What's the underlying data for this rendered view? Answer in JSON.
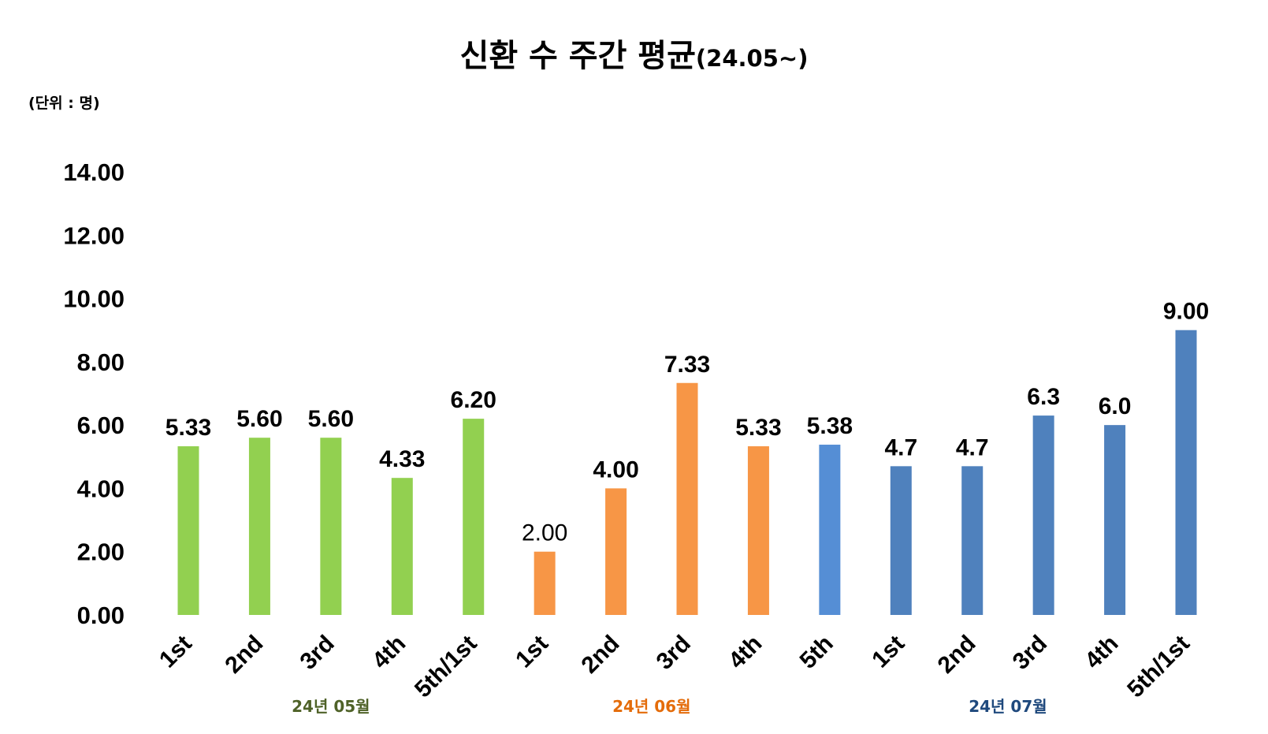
{
  "chart_data": {
    "type": "bar",
    "title": "신환 수 주간 평균",
    "title_suffix": "(24.05~)",
    "unit_label": "(단위 : 명)",
    "ylim": [
      0,
      14
    ],
    "yticks": [
      "0.00",
      "2.00",
      "4.00",
      "6.00",
      "8.00",
      "10.00",
      "12.00",
      "14.00"
    ],
    "grid": false,
    "legend": "none",
    "categories": [
      "1st",
      "2nd",
      "3rd",
      "4th",
      "5th/1st",
      "1st",
      "2nd",
      "3rd",
      "4th",
      "5th",
      "1st",
      "2nd",
      "3rd",
      "4th",
      "5th/1st"
    ],
    "values": [
      5.33,
      5.6,
      5.6,
      4.33,
      6.2,
      2.0,
      4.0,
      7.33,
      5.33,
      5.38,
      4.7,
      4.7,
      6.3,
      6.0,
      9.0
    ],
    "value_labels": [
      "5.33",
      "5.60",
      "5.60",
      "4.33",
      "6.20",
      "2.00",
      "4.00",
      "7.33",
      "5.33",
      "5.38",
      "4.7",
      "4.7",
      "6.3",
      "6.0",
      "9.00"
    ],
    "bar_colors": [
      "#92d050",
      "#92d050",
      "#92d050",
      "#92d050",
      "#92d050",
      "#f79646",
      "#f79646",
      "#f79646",
      "#f79646",
      "#558ed5",
      "#4f81bd",
      "#4f81bd",
      "#4f81bd",
      "#4f81bd",
      "#4f81bd"
    ],
    "groups": [
      {
        "label": "24년 05월",
        "color": "#4f6228",
        "start": 0,
        "end": 4
      },
      {
        "label": "24년 06월",
        "color": "#e46c0a",
        "start": 5,
        "end": 8
      },
      {
        "label": "24년 07월",
        "color": "#1f497d",
        "start": 9,
        "end": 14
      }
    ]
  }
}
